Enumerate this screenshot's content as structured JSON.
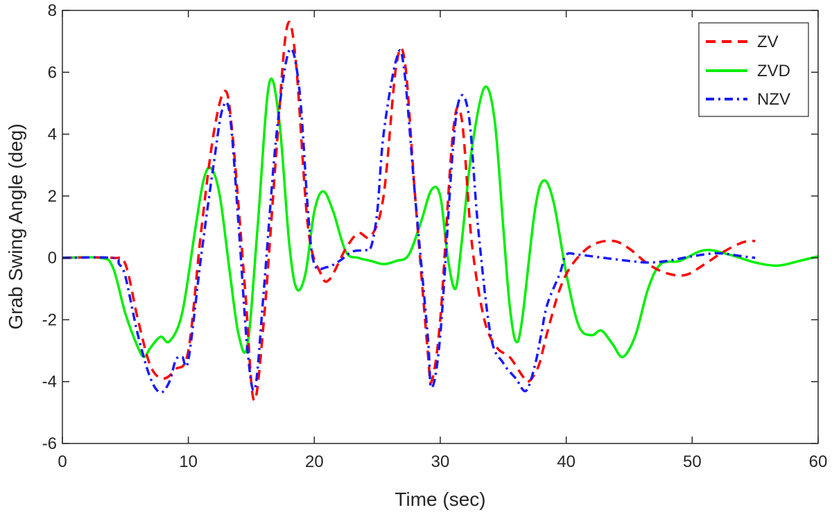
{
  "chart_data": {
    "type": "line",
    "title": "",
    "xlabel": "Time (sec)",
    "ylabel": "Grab Swing Angle (deg)",
    "xlim": [
      0,
      60
    ],
    "ylim": [
      -6,
      8
    ],
    "xticks": [
      0,
      10,
      20,
      30,
      40,
      50,
      60
    ],
    "yticks": [
      -6,
      -4,
      -2,
      0,
      2,
      4,
      6,
      8
    ],
    "xtick_labels": [
      "0",
      "10",
      "20",
      "30",
      "40",
      "50",
      "60"
    ],
    "ytick_labels": [
      "-6",
      "-4",
      "-2",
      "0",
      "2",
      "4",
      "6",
      "8"
    ],
    "grid": false,
    "legend_position": "top-right",
    "series": [
      {
        "name": "ZV",
        "color": "#ff0000",
        "line_style": "dashed",
        "x": [
          0,
          4,
          5,
          6,
          7,
          8,
          9,
          10,
          11,
          12,
          12.9,
          13.5,
          14.5,
          15.2,
          16,
          17,
          17.8,
          18.5,
          19.5,
          20.5,
          21.2,
          22.5,
          23.5,
          24.5,
          25.5,
          26.5,
          27.2,
          28,
          29,
          29.3,
          30,
          31,
          31.7,
          32.5,
          33.5,
          34.5,
          35.5,
          36.5,
          37,
          37.8,
          38.5,
          39.5,
          40.5,
          42,
          43.7,
          45,
          46.5,
          48,
          49.5,
          51,
          52.5,
          54,
          55
        ],
        "y": [
          0,
          0,
          -0.2,
          -2.0,
          -3.5,
          -3.9,
          -3.6,
          -3.0,
          0.8,
          4.0,
          5.4,
          4.0,
          -1.0,
          -4.6,
          -2.0,
          3.5,
          7.4,
          6.5,
          1.0,
          -0.5,
          -0.7,
          0.3,
          0.8,
          0.7,
          2.0,
          6.2,
          6.3,
          2.0,
          -3.0,
          -4.0,
          -2.0,
          4.0,
          4.5,
          0.5,
          -2.0,
          -2.9,
          -3.2,
          -3.8,
          -4.0,
          -3.5,
          -2.4,
          -1.0,
          -0.2,
          0.4,
          0.55,
          0.3,
          -0.2,
          -0.5,
          -0.55,
          -0.2,
          0.2,
          0.5,
          0.55
        ]
      },
      {
        "name": "ZVD",
        "color": "#00ee00",
        "line_style": "solid",
        "x": [
          0,
          3,
          4,
          5,
          6,
          6.5,
          7,
          7.8,
          8.5,
          9.5,
          10.5,
          11.2,
          11.8,
          12.5,
          13.3,
          14,
          14.7,
          15.5,
          16.4,
          17.2,
          18,
          18.6,
          19.3,
          20,
          20.7,
          21.5,
          22.5,
          23.5,
          24.5,
          25.5,
          26.5,
          27.5,
          28.5,
          29.3,
          30,
          30.6,
          31.2,
          31.7,
          32.5,
          33.5,
          34.3,
          35,
          35.5,
          36,
          36.5,
          37.5,
          38.2,
          39,
          40,
          41,
          42,
          42.8,
          43.7,
          44.5,
          45.5,
          46.5,
          47.5,
          49,
          51,
          53,
          55,
          56.8,
          58.5,
          60
        ],
        "y": [
          0,
          0,
          -0.3,
          -1.8,
          -2.9,
          -3.2,
          -2.9,
          -2.55,
          -2.7,
          -1.8,
          0.8,
          2.5,
          2.9,
          2.0,
          -0.5,
          -2.5,
          -2.8,
          1.0,
          5.6,
          4.5,
          0.5,
          -1.0,
          -0.5,
          1.5,
          2.15,
          1.5,
          0.2,
          0.0,
          -0.1,
          -0.2,
          -0.1,
          0.1,
          1.2,
          2.2,
          2.0,
          0.0,
          -1.0,
          0.5,
          3.5,
          5.5,
          4.5,
          1.0,
          -1.5,
          -2.7,
          -2.0,
          1.5,
          2.5,
          1.8,
          -0.5,
          -2.2,
          -2.5,
          -2.35,
          -2.8,
          -3.2,
          -2.5,
          -1.0,
          -0.2,
          -0.1,
          0.25,
          0.1,
          -0.15,
          -0.25,
          -0.1,
          0.05
        ]
      },
      {
        "name": "NZV",
        "color": "#1a1aff",
        "line_style": "dashdot",
        "x": [
          0,
          4,
          4.5,
          5,
          6,
          7,
          7.8,
          8.5,
          9,
          9.5,
          10,
          11,
          12,
          12.7,
          13.3,
          14,
          14.7,
          15.3,
          16,
          17,
          18,
          18.8,
          19.5,
          20,
          21,
          22,
          23,
          24,
          24.5,
          25,
          25.5,
          26.5,
          27.1,
          28,
          29,
          29.3,
          30,
          31,
          31.6,
          32.3,
          33,
          34,
          35,
          36,
          36.8,
          37.5,
          38,
          38.5,
          39.5,
          40,
          41,
          43,
          45,
          46.5,
          48,
          50,
          52,
          54,
          55
        ],
        "y": [
          0,
          0,
          -0.2,
          -0.6,
          -2.5,
          -3.9,
          -4.35,
          -4.0,
          -3.3,
          -3.2,
          -3.3,
          0.0,
          3.0,
          4.8,
          4.6,
          1.0,
          -3.0,
          -4.2,
          -1.0,
          4.0,
          6.7,
          5.5,
          1.5,
          -0.2,
          -0.3,
          -0.1,
          0.2,
          0.25,
          0.35,
          1.5,
          4.0,
          6.4,
          6.2,
          2.0,
          -2.5,
          -4.2,
          -2.5,
          3.5,
          5.2,
          4.5,
          1.0,
          -2.5,
          -3.4,
          -3.9,
          -4.3,
          -3.5,
          -2.5,
          -1.5,
          -0.5,
          0.1,
          0.1,
          0.0,
          -0.1,
          -0.15,
          -0.1,
          0.05,
          0.15,
          0.05,
          0.0
        ]
      }
    ]
  }
}
